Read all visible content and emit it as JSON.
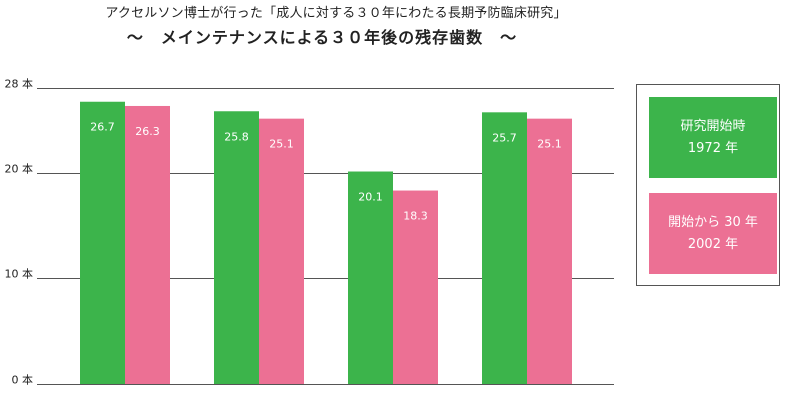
{
  "chart_data": {
    "type": "bar",
    "title": "アクセルソン博士が行った「成人に対する３０年にわたる長期予防臨床研究」",
    "subtitle": "～　メインテナンスによる３０年後の残存歯数　～",
    "categories": [
      "",
      "",
      "",
      ""
    ],
    "series": [
      {
        "name": "研究開始時",
        "name_line2": "1972 年",
        "color": "#3cb44b",
        "values": [
          26.7,
          25.8,
          20.1,
          25.7
        ]
      },
      {
        "name": "開始から 30 年",
        "name_line2": "2002 年",
        "color": "#ec7094",
        "values": [
          26.3,
          25.1,
          18.3,
          25.1
        ]
      }
    ],
    "ylim": [
      0,
      28
    ],
    "y_ticks": [
      {
        "value": 0,
        "label": "0 本"
      },
      {
        "value": 10,
        "label": "10 本"
      },
      {
        "value": 20,
        "label": "20 本"
      },
      {
        "value": 28,
        "label": "28 本"
      }
    ],
    "grid": true,
    "legend_position": "right"
  }
}
